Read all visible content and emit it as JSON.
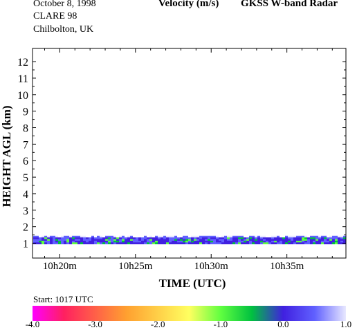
{
  "header": {
    "date": "October   8, 1998",
    "campaign": "CLARE 98",
    "site": "Chilbolton, UK",
    "variable": "Velocity (m/s)",
    "instrument": "GKSS  W-band Radar",
    "start": "Start:  1017 UTC"
  },
  "chart_data": {
    "type": "heatmap",
    "title": "Velocity (m/s)",
    "xlabel": "TIME (UTC)",
    "ylabel": "HEIGHT AGL (km)",
    "x_tick_labels": [
      "10h20m",
      "10h25m",
      "10h30m",
      "10h35m"
    ],
    "x_tick_minutes": [
      20,
      25,
      30,
      35
    ],
    "xlim_minutes": [
      18.2,
      38.9
    ],
    "y_tick_labels": [
      "1",
      "2",
      "3",
      "4",
      "5",
      "6",
      "7",
      "8",
      "9",
      "10",
      "11",
      "12"
    ],
    "y_ticks": [
      1,
      2,
      3,
      4,
      5,
      6,
      7,
      8,
      9,
      10,
      11,
      12
    ],
    "ylim": [
      0.1,
      12.8
    ],
    "echo_layer_km": [
      0.95,
      1.45
    ],
    "colorbar": {
      "range": [
        -4.0,
        1.0
      ],
      "tick_labels": [
        "-4.0",
        "-3.0",
        "-2.0",
        "-1.0",
        "0.0",
        "1.0"
      ],
      "tick_values": [
        -4,
        -3,
        -2,
        -1,
        0,
        1
      ]
    }
  },
  "colors": {
    "velocity_neg4": "#ff00ff",
    "velocity_neg3_5": "#ff2060",
    "velocity_neg2_5": "#ffa030",
    "velocity_neg1_5": "#ffff60",
    "velocity_neg1": "#60ff40",
    "velocity_neg0_5": "#00c040",
    "velocity_0": "#4020e0",
    "velocity_0_5": "#6060ff",
    "velocity_1": "#e8e8ff"
  }
}
